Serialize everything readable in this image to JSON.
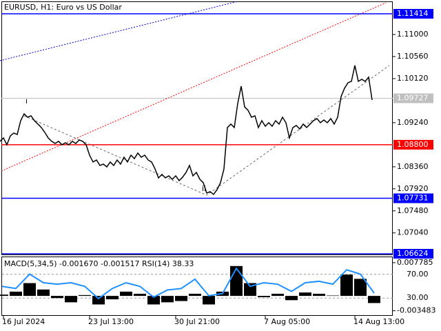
{
  "chart_data": [
    {
      "type": "line",
      "title": "EURUSD, H1:  Euro vs US Dollar",
      "color": "#000000",
      "values": [
        1.08868,
        1.08936,
        1.08799,
        1.08978,
        1.09033,
        1.09005,
        1.0928,
        1.09418,
        1.09349,
        1.09377,
        1.0928,
        1.09212,
        1.09143,
        1.09046,
        1.08936,
        1.08868,
        1.08826,
        1.08868,
        1.08799,
        1.0884,
        1.08799,
        1.08868,
        1.08826,
        1.08895,
        1.08868,
        1.08799,
        1.08592,
        1.08455,
        1.08496,
        1.08386,
        1.08413,
        1.08358,
        1.08455,
        1.08386,
        1.08496,
        1.08413,
        1.08551,
        1.08455,
        1.08592,
        1.08523,
        1.08634,
        1.08551,
        1.08592,
        1.08496,
        1.08455,
        1.08317,
        1.08138,
        1.08207,
        1.08138,
        1.08179,
        1.0811,
        1.08179,
        1.08083,
        1.08152,
        1.08248,
        1.08386,
        1.08179,
        1.08248,
        1.0811,
        1.08042,
        1.07835,
        1.07863,
        1.07808,
        1.07904,
        1.08042,
        1.08317,
        1.09143,
        1.09212,
        1.09143,
        1.09625,
        1.09969,
        1.09556,
        1.09487,
        1.09349,
        1.09377,
        1.09143,
        1.0928,
        1.0917,
        1.09239,
        1.0917,
        1.0928,
        1.09212,
        1.09349,
        1.09239,
        1.08936,
        1.09143,
        1.09184,
        1.09115,
        1.09212,
        1.09143,
        1.09212,
        1.0928,
        1.09322,
        1.09239,
        1.09294,
        1.09239,
        1.09322,
        1.09212,
        1.09349,
        1.09762,
        1.09927,
        1.10038,
        1.10065,
        1.10382,
        1.10065,
        1.10106,
        1.10065,
        1.10148,
        1.09693
      ],
      "xlim": [
        0,
        114
      ],
      "ylim": [
        1.06596,
        1.11689
      ],
      "xticks": [
        {
          "value": 1,
          "label": "16 Jul 2024"
        },
        {
          "value": 26,
          "label": "23 Jul 13:00"
        },
        {
          "value": 51,
          "label": "30 Jul 21:00"
        },
        {
          "value": 77,
          "label": "7 Aug 05:00"
        },
        {
          "value": 103,
          "label": "14 Aug 13:00"
        }
      ],
      "yticks": [
        {
          "value": 1.11,
          "label": "1.11000"
        },
        {
          "value": 1.1056,
          "label": "1.10560"
        },
        {
          "value": 1.1012,
          "label": "1.10120"
        },
        {
          "value": 1.0924,
          "label": "1.09240"
        },
        {
          "value": 1.0836,
          "label": "1.08360"
        },
        {
          "value": 1.0792,
          "label": "1.07920"
        },
        {
          "value": 1.0748,
          "label": "1.07480"
        },
        {
          "value": 1.0704,
          "label": "1.07040"
        }
      ],
      "levels": [
        {
          "value": 1.11414,
          "color": "#0000ff"
        },
        {
          "value": 1.09727,
          "color": "#c0c0c0"
        },
        {
          "value": 1.088,
          "label": "1.08800",
          "color": "#ff0000"
        },
        {
          "value": 1.07731,
          "color": "#0000ff"
        },
        {
          "value": 1.06624,
          "color": "#0000ff"
        }
      ],
      "annotations": [
        "i",
        "ii"
      ]
    },
    {
      "type": "macd_rsi",
      "title": "MACD(5,34,5) -0.001670 -0.001517 RSI(14) 38.33",
      "macd": [
        0.0003,
        0.001,
        0.003,
        0.0015,
        -0.0005,
        -0.0015,
        0.0002,
        -0.002,
        -0.0008,
        0.001,
        0.0005,
        -0.002,
        -0.0015,
        -0.0012,
        0.0005,
        -0.002,
        0.001,
        0.007,
        0.003,
        -0.0003,
        0.0005,
        -0.001,
        0.0008,
        0.0005,
        0.0001,
        0.005,
        0.004,
        -0.00167
      ],
      "rsi": [
        49.7,
        46.1,
        70.3,
        55.8,
        53.3,
        55.8,
        49.7,
        29.1,
        46.1,
        55.8,
        49.7,
        31.5,
        43.6,
        46.1,
        61.8,
        33.9,
        37.6,
        80.0,
        49.7,
        55.8,
        53.3,
        41.2,
        55.8,
        58.2,
        53.3,
        77.6,
        70.3,
        38.33
      ],
      "macd_color": "#000000",
      "rsi_color": "#1e90ff",
      "ylim": [
        -0.00467,
        0.00923
      ],
      "yticks": [
        0.007785,
        -0.003483
      ],
      "y2lim": [
        0,
        100
      ],
      "y2ticks": [
        {
          "value": 70,
          "label": "70.00"
        },
        {
          "value": 30,
          "label": "30.00"
        }
      ]
    }
  ]
}
